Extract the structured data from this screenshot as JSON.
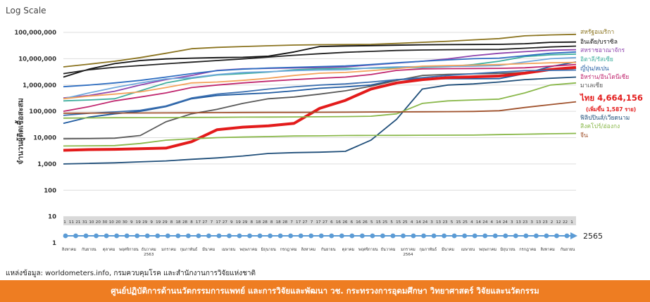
{
  "subtitle": "Log Scale",
  "source": "แหล่งข้อมูล: worldometers.info, กรมควบคุมโรค และสำนักงานการวิจัยแห่งชาติ",
  "footer": "ศูนย์ปฏิบัติการด้านนวัตกรรมการแพทย์ และการวิจัยและพัฒนา วช. กระทรวงการอุดมศึกษา วิทยาศาสตร์ วิจัยและนวัตกรรม",
  "colors": {
    "thailand": "#e31b1b",
    "footer": "#ee7d22",
    "timeline": "#5b9bd5",
    "day_band": "#d9d9d9"
  },
  "chart_data": {
    "type": "line",
    "title": "",
    "subtitle": "Log Scale",
    "ylabel": "จำนวนผู้ติดเชื้อสะสม",
    "xlabel": "",
    "yscale": "log",
    "ylim": [
      1,
      100000000
    ],
    "grid": true,
    "legend": "right, labels beside line ends",
    "y_ticks": [
      "1",
      "10",
      "100",
      "1,000",
      "10,000",
      "100,000",
      "1,000,000",
      "10,000,000",
      "100,000,000"
    ],
    "day_ticks": [
      "1",
      "11",
      "21",
      "31",
      "10",
      "20",
      "30",
      "10",
      "20",
      "30",
      "9",
      "19",
      "29",
      "9",
      "19",
      "29",
      "8",
      "18",
      "28",
      "8",
      "17",
      "27",
      "7",
      "17",
      "27",
      "9",
      "19",
      "29",
      "8",
      "18",
      "28",
      "8",
      "18",
      "28",
      "7",
      "17",
      "27",
      "7",
      "17",
      "27",
      "6",
      "16",
      "26",
      "6",
      "16",
      "26",
      "5",
      "15",
      "25",
      "5",
      "15",
      "25",
      "4",
      "14",
      "24",
      "3",
      "13",
      "23",
      "5",
      "15",
      "25",
      "4",
      "14",
      "24",
      "4",
      "14",
      "24",
      "3",
      "13",
      "23",
      "3",
      "13",
      "23",
      "2",
      "12",
      "22",
      "1"
    ],
    "month_labels": [
      "สิงหาคม",
      "กันยายน",
      "ตุลาคม",
      "พฤศจิกายน",
      "ธันวาคม",
      "มกราคม",
      "กุมภาพันธ์",
      "มีนาคม",
      "เมษายน",
      "พฤษภาคม",
      "มิถุนายน",
      "กรกฎาคม",
      "สิงหาคม",
      "กันยายน",
      "ตุลาคม",
      "พฤศจิกายน",
      "ธันวาคม",
      "มกราคม",
      "กุมภาพันธ์",
      "มีนาคม",
      "เมษายน",
      "พฤษภาคม",
      "มิถุนายน",
      "กรกฎาคม",
      "สิงหาคม",
      "กันยายน"
    ],
    "year_labels": [
      "2563",
      "2564"
    ],
    "year_end_label": "2565",
    "annotation": {
      "text": "ไทย 4,664,156",
      "sub": "(เพิ่มขึ้น 1,587 ราย)"
    },
    "x": [
      0,
      0.05,
      0.1,
      0.15,
      0.2,
      0.25,
      0.3,
      0.35,
      0.4,
      0.45,
      0.5,
      0.55,
      0.6,
      0.65,
      0.7,
      0.75,
      0.8,
      0.85,
      0.9,
      0.95,
      1
    ],
    "series": [
      {
        "name": "สหรัฐอเมริกา",
        "color": "#8b7420",
        "values": [
          4900000,
          6200000,
          8000000,
          11000000,
          16000000,
          24000000,
          27000000,
          29000000,
          31000000,
          33000000,
          34000000,
          34500000,
          35000000,
          38000000,
          42000000,
          46000000,
          52000000,
          58000000,
          74000000,
          80000000,
          84000000
        ]
      },
      {
        "name": "อินเดีย",
        "color": "#111111",
        "values": [
          2000000,
          4000000,
          6500000,
          8500000,
          9800000,
          10500000,
          11000000,
          11300000,
          12500000,
          18000000,
          29000000,
          30500000,
          31500000,
          32500000,
          33800000,
          34300000,
          34700000,
          35000000,
          37000000,
          42000000,
          43000000
        ]
      },
      {
        "name": "บราซิล",
        "color": "#222222",
        "values": [
          2700000,
          3800000,
          4700000,
          5500000,
          6400000,
          7400000,
          8500000,
          9800000,
          11500000,
          13500000,
          15500000,
          17500000,
          19000000,
          20500000,
          21500000,
          22000000,
          22200000,
          22500000,
          25000000,
          28000000,
          30000000
        ]
      },
      {
        "name": "สหราชอาณาจักร",
        "color": "#8e44ad",
        "values": [
          320000,
          400000,
          580000,
          1000000,
          1600000,
          2300000,
          3600000,
          4100000,
          4300000,
          4450000,
          4600000,
          4900000,
          5800000,
          6800000,
          8000000,
          9800000,
          13000000,
          16000000,
          18500000,
          21000000,
          22000000
        ]
      },
      {
        "name": "อิตาลี",
        "color": "#3fae9e",
        "values": [
          250000,
          270000,
          300000,
          600000,
          1200000,
          1800000,
          2400000,
          2700000,
          3100000,
          3800000,
          4150000,
          4250000,
          4350000,
          4500000,
          4700000,
          5000000,
          6000000,
          8000000,
          12000000,
          14000000,
          15000000
        ]
      },
      {
        "name": "รัสเซีย",
        "color": "#2f6ec1",
        "values": [
          860000,
          1000000,
          1200000,
          1500000,
          2000000,
          2700000,
          3500000,
          4000000,
          4400000,
          4700000,
          5000000,
          5300000,
          6000000,
          7000000,
          8000000,
          9000000,
          10000000,
          10500000,
          13000000,
          16000000,
          18000000
        ]
      },
      {
        "name": "ญี่ปุ่น",
        "color": "#1f5aa0",
        "values": [
          35000,
          60000,
          80000,
          100000,
          150000,
          300000,
          400000,
          450000,
          500000,
          600000,
          750000,
          850000,
          1000000,
          1600000,
          1700000,
          1730000,
          1730000,
          1750000,
          2700000,
          5000000,
          7500000
        ]
      },
      {
        "name": "สเปน",
        "color": "#6fa8dc",
        "values": [
          300000,
          500000,
          800000,
          1200000,
          1700000,
          1900000,
          2500000,
          3000000,
          3200000,
          3500000,
          3700000,
          3800000,
          4500000,
          4900000,
          5000000,
          5100000,
          5200000,
          5500000,
          7500000,
          10000000,
          11000000
        ]
      },
      {
        "name": "อิหร่าน",
        "color": "#f3a25b",
        "values": [
          300000,
          380000,
          450000,
          550000,
          800000,
          1200000,
          1300000,
          1500000,
          1800000,
          2300000,
          2800000,
          3000000,
          3500000,
          4200000,
          5200000,
          5500000,
          5700000,
          6000000,
          6500000,
          7000000,
          7200000
        ]
      },
      {
        "name": "อินโดนีเซีย",
        "color": "#c0276f",
        "values": [
          100000,
          150000,
          250000,
          350000,
          500000,
          800000,
          1000000,
          1200000,
          1400000,
          1600000,
          1800000,
          2000000,
          2500000,
          3600000,
          4100000,
          4200000,
          4250000,
          4300000,
          4500000,
          5200000,
          6000000
        ]
      },
      {
        "name": "มาเลเซีย",
        "color": "#595959",
        "values": [
          9000,
          9200,
          9500,
          12000,
          40000,
          80000,
          120000,
          200000,
          300000,
          350000,
          450000,
          600000,
          900000,
          1500000,
          2300000,
          2550000,
          2650000,
          2750000,
          3000000,
          3700000,
          4300000
        ]
      },
      {
        "name": "ไทย",
        "color": "#e31b1b",
        "values": [
          3300,
          3500,
          3600,
          3800,
          4000,
          7000,
          20000,
          25000,
          28000,
          35000,
          130000,
          260000,
          700000,
          1200000,
          1600000,
          1900000,
          2050000,
          2200000,
          2800000,
          3900000,
          4664156
        ]
      },
      {
        "name": "ฟิลิปปินส์",
        "color": "#3b6fb0",
        "values": [
          70000,
          85000,
          95000,
          110000,
          160000,
          320000,
          450000,
          550000,
          700000,
          850000,
          1000000,
          1100000,
          1300000,
          1600000,
          1900000,
          2300000,
          2700000,
          3100000,
          3500000,
          3600000,
          3700000
        ]
      },
      {
        "name": "เวียดนาม",
        "color": "#1f4e79",
        "values": [
          1000,
          1050,
          1100,
          1200,
          1300,
          1500,
          1700,
          2000,
          2500,
          2700,
          2800,
          3000,
          8000,
          50000,
          700000,
          1000000,
          1100000,
          1300000,
          1600000,
          1800000,
          2000000
        ]
      },
      {
        "name": "สิงคโปร์",
        "color": "#8ab84b",
        "values": [
          55000,
          56000,
          57000,
          57500,
          58000,
          58500,
          59000,
          60000,
          60500,
          61000,
          62000,
          63000,
          65000,
          80000,
          200000,
          250000,
          270000,
          290000,
          500000,
          1000000,
          1200000
        ]
      },
      {
        "name": "ฮ่องกง",
        "color": "#8ab84b",
        "values": [
          4800,
          4900,
          5000,
          6000,
          8000,
          9000,
          10000,
          10500,
          11000,
          11500,
          11700,
          12000,
          12100,
          12200,
          12300,
          12400,
          12500,
          13000,
          13500,
          14000,
          14500
        ]
      },
      {
        "name": "จีน",
        "color": "#a0522d",
        "values": [
          85000,
          85500,
          86000,
          86500,
          87000,
          88000,
          89000,
          90000,
          90500,
          91000,
          92000,
          92500,
          94000,
          95000,
          96000,
          97000,
          99000,
          105000,
          140000,
          180000,
          230000
        ]
      }
    ]
  },
  "right_labels": [
    {
      "text": "สหรัฐอเมริกา",
      "color": "#8b7420",
      "bold": false
    },
    {
      "text": "อินเดีย/บราซิล",
      "color": "#111111",
      "bold": false
    },
    {
      "text": "สหราชอาณาจักร",
      "color": "#8e44ad",
      "bold": false
    },
    {
      "text": "อิตาลี/รัสเซีย",
      "color": "#3fae9e",
      "bold": false
    },
    {
      "text": "ญี่ปุ่น/สเปน",
      "color": "#1f5aa0",
      "bold": false
    },
    {
      "text": "อิหร่าน/อินโดนีเซีย",
      "color": "#c0276f",
      "bold": false
    },
    {
      "text": "มาเลเซีย",
      "color": "#595959",
      "bold": false
    },
    {
      "text": "ฟิลิปปินส์/เวียดนาม",
      "color": "#1f4e79",
      "bold": false
    },
    {
      "text": "สิงคโปร์/ฮ่องกง",
      "color": "#8ab84b",
      "bold": false
    },
    {
      "text": "จีน",
      "color": "#a0522d",
      "bold": false
    }
  ]
}
